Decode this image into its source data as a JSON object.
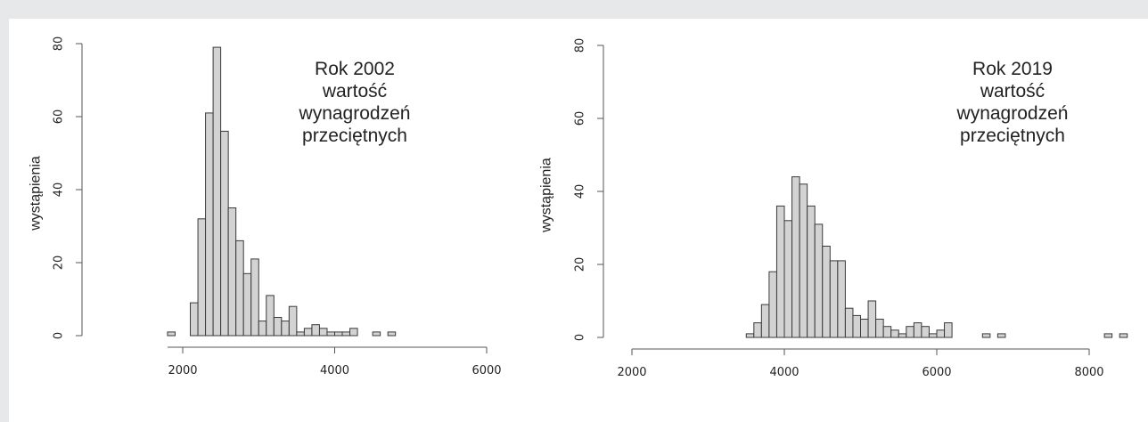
{
  "chart_data": [
    {
      "type": "bar",
      "title_lines": [
        "Rok 2002",
        "wartość",
        "wynagrodzeń",
        "przeciętnych"
      ],
      "xlabel": "",
      "ylabel": "wystąpienia",
      "xlim": [
        2000,
        6000
      ],
      "ylim": [
        0,
        80
      ],
      "x_ticks": [
        "2000",
        "4000",
        "6000"
      ],
      "y_ticks": [
        "0",
        "20",
        "40",
        "60",
        "80"
      ],
      "bin_width": 100,
      "bins": [
        {
          "x": 1800,
          "count": 1
        },
        {
          "x": 1900,
          "count": 0
        },
        {
          "x": 2000,
          "count": 0
        },
        {
          "x": 2100,
          "count": 9
        },
        {
          "x": 2200,
          "count": 32
        },
        {
          "x": 2300,
          "count": 61
        },
        {
          "x": 2400,
          "count": 79
        },
        {
          "x": 2500,
          "count": 56
        },
        {
          "x": 2600,
          "count": 35
        },
        {
          "x": 2700,
          "count": 26
        },
        {
          "x": 2800,
          "count": 17
        },
        {
          "x": 2900,
          "count": 21
        },
        {
          "x": 3000,
          "count": 4
        },
        {
          "x": 3100,
          "count": 11
        },
        {
          "x": 3200,
          "count": 5
        },
        {
          "x": 3300,
          "count": 4
        },
        {
          "x": 3400,
          "count": 8
        },
        {
          "x": 3500,
          "count": 1
        },
        {
          "x": 3600,
          "count": 2
        },
        {
          "x": 3700,
          "count": 3
        },
        {
          "x": 3800,
          "count": 2
        },
        {
          "x": 3900,
          "count": 1
        },
        {
          "x": 4000,
          "count": 1
        },
        {
          "x": 4100,
          "count": 1
        },
        {
          "x": 4200,
          "count": 2
        },
        {
          "x": 4300,
          "count": 0
        },
        {
          "x": 4400,
          "count": 0
        },
        {
          "x": 4500,
          "count": 1
        },
        {
          "x": 4600,
          "count": 0
        },
        {
          "x": 4700,
          "count": 1
        }
      ]
    },
    {
      "type": "bar",
      "title_lines": [
        "Rok 2019",
        "wartość",
        "wynagrodzeń",
        "przeciętnych"
      ],
      "xlabel": "",
      "ylabel": "wystąpienia",
      "xlim": [
        2000,
        8000
      ],
      "ylim": [
        0,
        80
      ],
      "x_ticks": [
        "2000",
        "4000",
        "6000",
        "8000"
      ],
      "y_ticks": [
        "0",
        "20",
        "40",
        "60",
        "80"
      ],
      "bin_width": 100,
      "bins": [
        {
          "x": 3500,
          "count": 1
        },
        {
          "x": 3600,
          "count": 4
        },
        {
          "x": 3700,
          "count": 9
        },
        {
          "x": 3800,
          "count": 18
        },
        {
          "x": 3900,
          "count": 36
        },
        {
          "x": 4000,
          "count": 32
        },
        {
          "x": 4100,
          "count": 44
        },
        {
          "x": 4200,
          "count": 42
        },
        {
          "x": 4300,
          "count": 36
        },
        {
          "x": 4400,
          "count": 31
        },
        {
          "x": 4500,
          "count": 25
        },
        {
          "x": 4600,
          "count": 21
        },
        {
          "x": 4700,
          "count": 21
        },
        {
          "x": 4800,
          "count": 8
        },
        {
          "x": 4900,
          "count": 6
        },
        {
          "x": 5000,
          "count": 5
        },
        {
          "x": 5100,
          "count": 10
        },
        {
          "x": 5200,
          "count": 5
        },
        {
          "x": 5300,
          "count": 3
        },
        {
          "x": 5400,
          "count": 2
        },
        {
          "x": 5500,
          "count": 1
        },
        {
          "x": 5600,
          "count": 3
        },
        {
          "x": 5700,
          "count": 4
        },
        {
          "x": 5800,
          "count": 3
        },
        {
          "x": 5900,
          "count": 1
        },
        {
          "x": 6000,
          "count": 2
        },
        {
          "x": 6100,
          "count": 4
        },
        {
          "x": 6600,
          "count": 1
        },
        {
          "x": 6800,
          "count": 1
        },
        {
          "x": 8200,
          "count": 1
        },
        {
          "x": 8400,
          "count": 1
        }
      ]
    }
  ]
}
